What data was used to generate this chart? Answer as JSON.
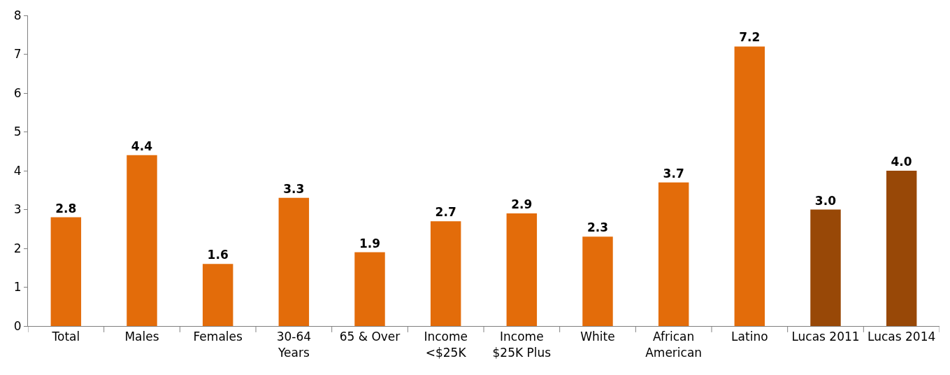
{
  "chart_data": {
    "type": "bar",
    "categories": [
      "Total",
      "Males",
      "Females",
      "30-64\nYears",
      "65 & Over",
      "Income\n<$25K",
      "Income\n$25K Plus",
      "White",
      "African\nAmerican",
      "Latino",
      "Lucas 2011",
      "Lucas 2014"
    ],
    "values": [
      2.8,
      4.4,
      1.6,
      3.3,
      1.9,
      2.7,
      2.9,
      2.3,
      3.7,
      7.2,
      3.0,
      4.0
    ],
    "value_labels": [
      "2.8",
      "4.4",
      "1.6",
      "3.3",
      "1.9",
      "2.7",
      "2.9",
      "2.3",
      "3.7",
      "7.2",
      "3.0",
      "4.0"
    ],
    "colors": [
      "#e36c0a",
      "#e36c0a",
      "#e36c0a",
      "#e36c0a",
      "#e36c0a",
      "#e36c0a",
      "#e36c0a",
      "#e36c0a",
      "#e36c0a",
      "#e36c0a",
      "#984807",
      "#984807"
    ],
    "ylim": [
      0,
      8
    ],
    "yticks": [
      0,
      1,
      2,
      3,
      4,
      5,
      6,
      7,
      8
    ]
  }
}
